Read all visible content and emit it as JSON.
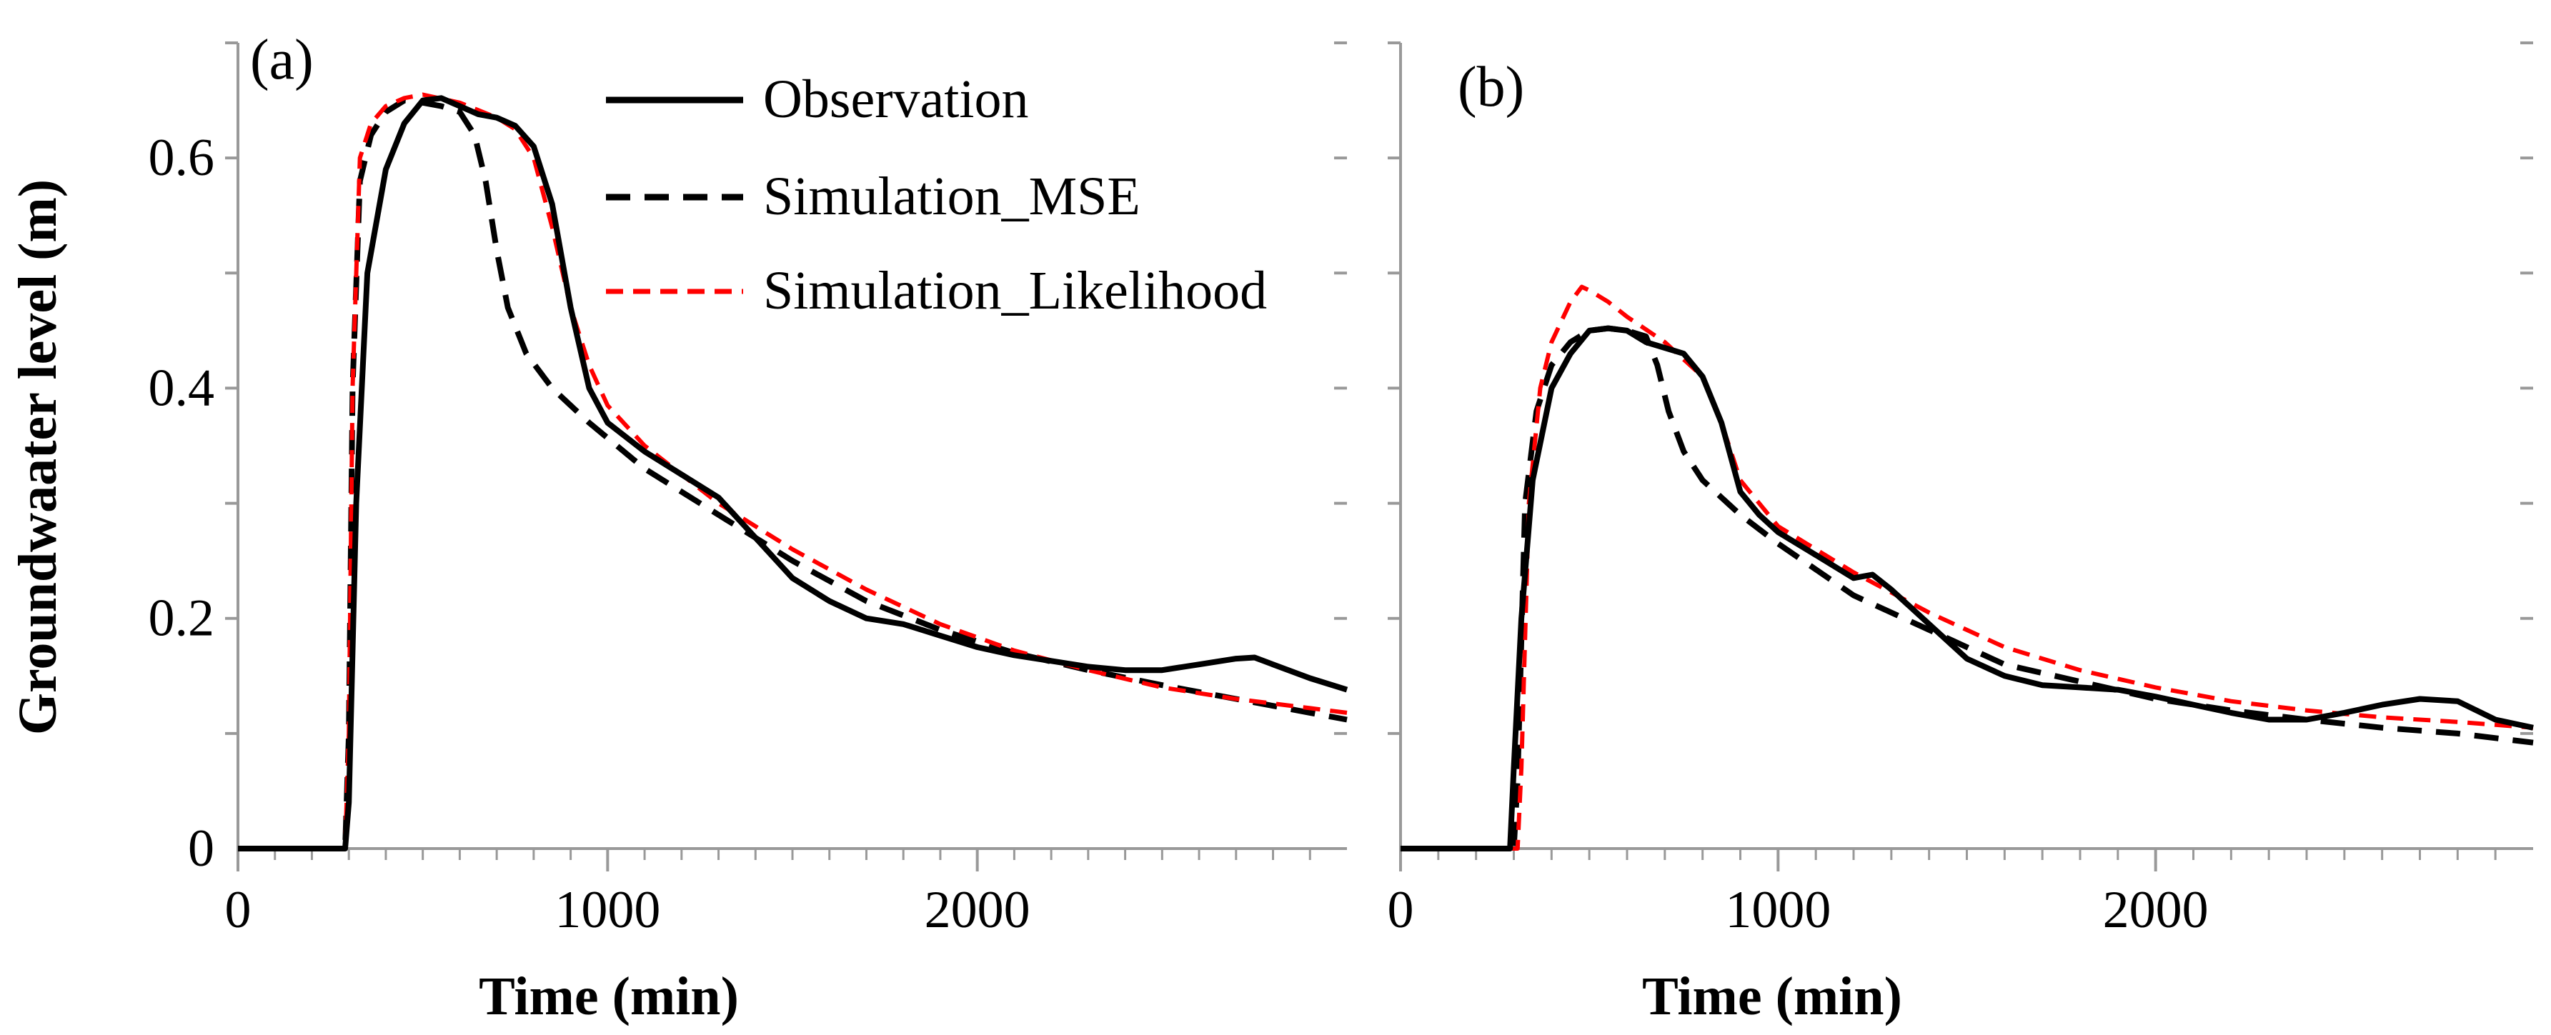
{
  "chart_data": [
    {
      "type": "line",
      "panel_label": "(a)",
      "xlabel": "Time (min)",
      "ylabel": "Groundwaater level (m)",
      "xlim": [
        0,
        3000
      ],
      "ylim": [
        0,
        0.7
      ],
      "xticks": [
        {
          "value": 0,
          "label": "0"
        },
        {
          "value": 1000,
          "label": "1000"
        },
        {
          "value": 2000,
          "label": "2000"
        }
      ],
      "yticks": [
        {
          "value": 0,
          "label": "0"
        },
        {
          "value": 0.2,
          "label": "0.2"
        },
        {
          "value": 0.4,
          "label": "0.4"
        },
        {
          "value": 0.6,
          "label": "0.6"
        }
      ],
      "legend": {
        "position": "top-right",
        "show": true
      },
      "series": [
        {
          "name": "Observation",
          "color": "#000000",
          "style": "solid",
          "x": [
            0,
            290,
            300,
            320,
            350,
            400,
            450,
            500,
            550,
            600,
            650,
            700,
            750,
            800,
            850,
            900,
            950,
            1000,
            1100,
            1200,
            1300,
            1400,
            1500,
            1600,
            1700,
            1800,
            1900,
            2000,
            2100,
            2200,
            2300,
            2400,
            2500,
            2600,
            2700,
            2750,
            2800,
            2900,
            3000
          ],
          "y": [
            0,
            0,
            0.04,
            0.3,
            0.5,
            0.59,
            0.63,
            0.65,
            0.652,
            0.645,
            0.638,
            0.635,
            0.628,
            0.61,
            0.56,
            0.47,
            0.4,
            0.37,
            0.345,
            0.325,
            0.305,
            0.27,
            0.235,
            0.215,
            0.2,
            0.195,
            0.185,
            0.175,
            0.168,
            0.163,
            0.158,
            0.155,
            0.155,
            0.16,
            0.165,
            0.166,
            0.16,
            0.148,
            0.138
          ]
        },
        {
          "name": "Simulation_MSE",
          "color": "#000000",
          "style": "dashed",
          "x": [
            0,
            290,
            300,
            310,
            330,
            360,
            400,
            450,
            500,
            550,
            600,
            640,
            670,
            700,
            730,
            780,
            850,
            950,
            1100,
            1300,
            1500,
            1700,
            1900,
            2100,
            2300,
            2500,
            2700,
            2900,
            3000
          ],
          "y": [
            0,
            0,
            0.1,
            0.4,
            0.58,
            0.62,
            0.64,
            0.65,
            0.648,
            0.645,
            0.64,
            0.62,
            0.58,
            0.52,
            0.47,
            0.43,
            0.4,
            0.37,
            0.33,
            0.29,
            0.25,
            0.215,
            0.19,
            0.17,
            0.155,
            0.142,
            0.13,
            0.118,
            0.112
          ]
        },
        {
          "name": "Simulation_Likelihood",
          "color": "#ff0000",
          "style": "dashed",
          "x": [
            0,
            290,
            300,
            310,
            330,
            360,
            400,
            450,
            500,
            600,
            700,
            750,
            800,
            850,
            900,
            950,
            1000,
            1100,
            1300,
            1500,
            1700,
            1900,
            2100,
            2300,
            2500,
            2700,
            2900,
            3000
          ],
          "y": [
            0,
            0,
            0.1,
            0.4,
            0.6,
            0.63,
            0.645,
            0.652,
            0.655,
            0.648,
            0.635,
            0.625,
            0.6,
            0.54,
            0.47,
            0.42,
            0.385,
            0.35,
            0.3,
            0.26,
            0.225,
            0.195,
            0.172,
            0.155,
            0.14,
            0.13,
            0.122,
            0.118
          ]
        }
      ]
    },
    {
      "type": "line",
      "panel_label": "(b)",
      "xlabel": "Time (min)",
      "ylabel": "",
      "xlim": [
        0,
        3000
      ],
      "ylim": [
        0,
        0.7
      ],
      "xticks": [
        {
          "value": 0,
          "label": "0"
        },
        {
          "value": 1000,
          "label": "1000"
        },
        {
          "value": 2000,
          "label": "2000"
        }
      ],
      "yticks": [],
      "legend": {
        "show": false
      },
      "series": [
        {
          "name": "Observation",
          "color": "#000000",
          "style": "solid",
          "x": [
            0,
            290,
            300,
            320,
            350,
            400,
            450,
            500,
            550,
            600,
            650,
            700,
            750,
            800,
            850,
            900,
            950,
            1000,
            1100,
            1200,
            1250,
            1300,
            1400,
            1500,
            1600,
            1700,
            1800,
            1900,
            2000,
            2100,
            2200,
            2300,
            2400,
            2500,
            2600,
            2700,
            2800,
            2900,
            3000
          ],
          "y": [
            0,
            0,
            0.07,
            0.2,
            0.32,
            0.4,
            0.43,
            0.45,
            0.452,
            0.45,
            0.44,
            0.435,
            0.43,
            0.41,
            0.37,
            0.31,
            0.29,
            0.275,
            0.255,
            0.235,
            0.238,
            0.225,
            0.195,
            0.165,
            0.15,
            0.142,
            0.14,
            0.138,
            0.132,
            0.125,
            0.118,
            0.112,
            0.112,
            0.118,
            0.125,
            0.13,
            0.128,
            0.112,
            0.105
          ]
        },
        {
          "name": "Simulation_MSE",
          "color": "#000000",
          "style": "dashed",
          "x": [
            0,
            300,
            310,
            330,
            360,
            400,
            450,
            500,
            550,
            600,
            650,
            680,
            710,
            750,
            800,
            900,
            1000,
            1200,
            1400,
            1600,
            1800,
            2000,
            2200,
            2400,
            2600,
            2800,
            3000
          ],
          "y": [
            0,
            0,
            0.06,
            0.3,
            0.38,
            0.42,
            0.44,
            0.45,
            0.452,
            0.45,
            0.445,
            0.42,
            0.38,
            0.345,
            0.32,
            0.29,
            0.265,
            0.22,
            0.19,
            0.16,
            0.145,
            0.13,
            0.12,
            0.112,
            0.105,
            0.1,
            0.092
          ]
        },
        {
          "name": "Simulation_Likelihood",
          "color": "#ff0000",
          "style": "dashed",
          "x": [
            0,
            310,
            320,
            340,
            370,
            400,
            450,
            480,
            500,
            550,
            600,
            700,
            800,
            850,
            900,
            950,
            1000,
            1200,
            1400,
            1600,
            1800,
            2000,
            2200,
            2400,
            2600,
            2800,
            3000
          ],
          "y": [
            0,
            0,
            0.07,
            0.3,
            0.4,
            0.44,
            0.475,
            0.488,
            0.485,
            0.475,
            0.462,
            0.44,
            0.41,
            0.37,
            0.32,
            0.3,
            0.28,
            0.24,
            0.205,
            0.175,
            0.155,
            0.14,
            0.128,
            0.12,
            0.114,
            0.11,
            0.105
          ]
        }
      ]
    }
  ]
}
